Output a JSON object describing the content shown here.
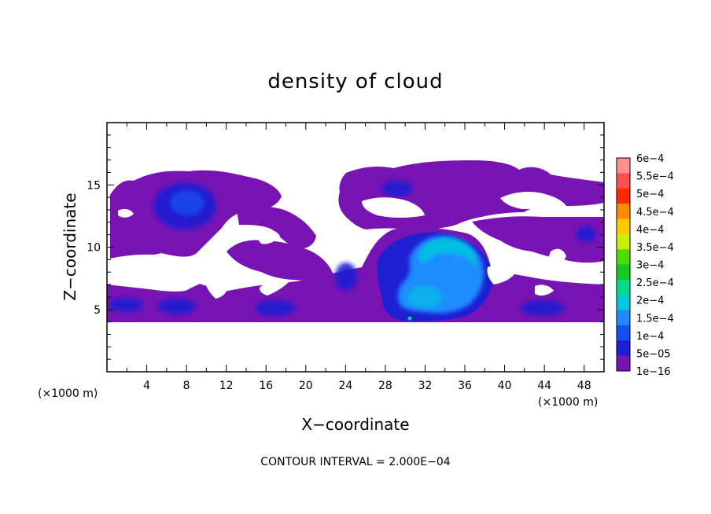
{
  "chart_data": {
    "type": "heatmap",
    "title": "density of cloud",
    "xlabel": "X−coordinate",
    "ylabel": "Z−coordinate",
    "x_unit_left": "(×1000 m)",
    "x_unit_right": "(×1000 m)",
    "xlim": [
      0,
      50
    ],
    "ylim": [
      0,
      20
    ],
    "xticks": [
      4,
      8,
      12,
      16,
      20,
      24,
      28,
      32,
      36,
      40,
      44,
      48
    ],
    "yticks": [
      5,
      10,
      15
    ],
    "footnote": "CONTOUR INTERVAL = 2.000E−04",
    "colorbar": {
      "labels": [
        "6e−4",
        "5.5e−4",
        "5e−4",
        "4.5e−4",
        "4e−4",
        "3.5e−4",
        "3e−4",
        "2.5e−4",
        "2e−4",
        "1.5e−4",
        "1e−4",
        "5e−05",
        "1e−16"
      ],
      "colors": [
        "#ff9090",
        "#ff5050",
        "#ff2a00",
        "#ff8c00",
        "#ffc800",
        "#c8f000",
        "#50dc00",
        "#14c828",
        "#00dc8c",
        "#00c8dc",
        "#1e8cff",
        "#1450f0",
        "#1e1ed2",
        "#7814b4"
      ]
    },
    "regions": [
      {
        "name": "upper-left cloud band",
        "x": [
          0.5,
          16
        ],
        "z": [
          10.5,
          15.8
        ],
        "density": 1e-16
      },
      {
        "name": "upper-left dense core",
        "x": [
          5,
          10
        ],
        "z": [
          12,
          15
        ],
        "density": 5e-05
      },
      {
        "name": "central upper band",
        "x": [
          22,
          48
        ],
        "z": [
          11,
          16.5
        ],
        "density": 1e-16
      },
      {
        "name": "lower cloud layer",
        "x": [
          0,
          50
        ],
        "z": [
          4.2,
          7.5
        ],
        "density": 1e-16
      },
      {
        "name": "central convective cell",
        "x": [
          28,
          38
        ],
        "z": [
          4.2,
          11.2
        ],
        "density": 0.00015
      },
      {
        "name": "convective cell peak",
        "x": [
          31,
          37
        ],
        "z": [
          9,
          11
        ],
        "density": 0.00015
      }
    ]
  }
}
